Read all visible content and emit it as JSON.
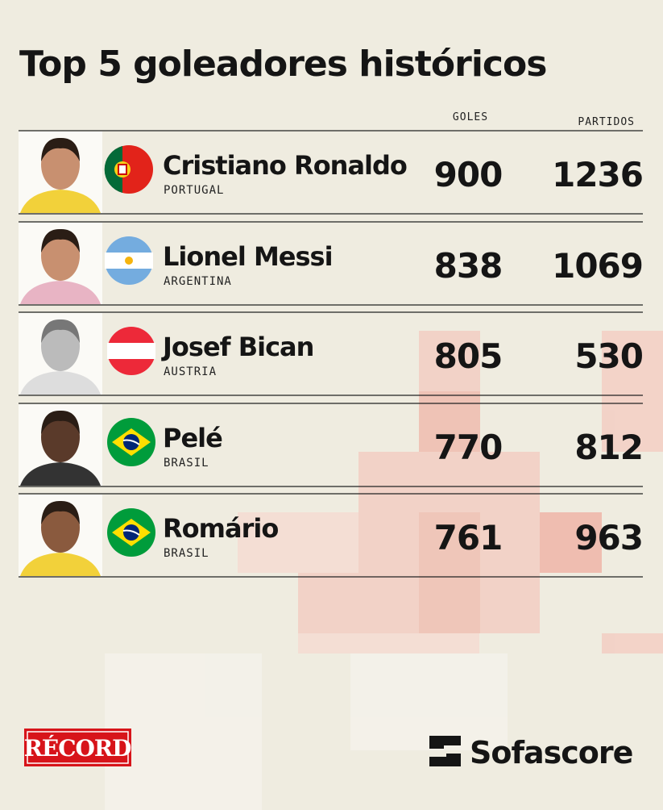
{
  "title": "Top 5 goleadores históricos",
  "columns": {
    "goals": "GOLES",
    "matches": "PARTIDOS"
  },
  "rows": [
    {
      "name": "Cristiano Ronaldo",
      "country": "PORTUGAL",
      "goals": 900,
      "matches": 1236
    },
    {
      "name": "Lionel Messi",
      "country": "ARGENTINA",
      "goals": 838,
      "matches": 1069
    },
    {
      "name": "Josef Bican",
      "country": "AUSTRIA",
      "goals": 805,
      "matches": 530
    },
    {
      "name": "Pelé",
      "country": "BRASIL",
      "goals": 770,
      "matches": 812
    },
    {
      "name": "Romário",
      "country": "BRASIL",
      "goals": 761,
      "matches": 963
    }
  ],
  "footer": {
    "left": "RÉCORD",
    "right": "Sofascore"
  }
}
